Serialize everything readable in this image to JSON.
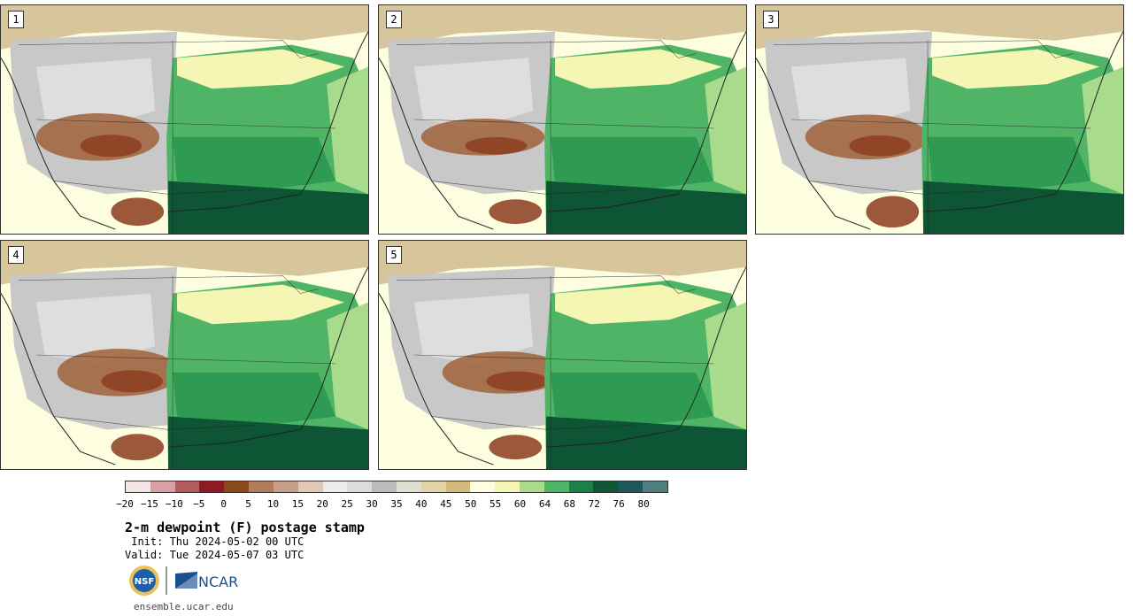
{
  "panels": [
    {
      "number": "1",
      "west_dry": 0.9,
      "south_dry": 0.8
    },
    {
      "number": "2",
      "west_dry": 0.7,
      "south_dry": 0.7
    },
    {
      "number": "3",
      "west_dry": 0.85,
      "south_dry": 0.9
    },
    {
      "number": "4",
      "west_dry": 0.9,
      "south_dry": 0.75
    },
    {
      "number": "5",
      "west_dry": 0.8,
      "south_dry": 0.7
    }
  ],
  "colorbar": {
    "colors": [
      "#f4e6e6",
      "#d9a0a3",
      "#b25c60",
      "#8e1a22",
      "#8a4a19",
      "#b07c5c",
      "#c8a088",
      "#e0c8b8",
      "#ececec",
      "#dcdcdc",
      "#bcbcbc",
      "#dfdfcf",
      "#e3d3a9",
      "#d4b97a",
      "#fdfde0",
      "#f6f6b4",
      "#a8dc8c",
      "#4fb465",
      "#18824a",
      "#0d5535",
      "#1e5758",
      "#4f7f7f"
    ],
    "tick_labels": [
      "−20",
      "−15",
      "−10",
      "−5",
      "0",
      "5",
      "10",
      "15",
      "20",
      "25",
      "30",
      "35",
      "40",
      "45",
      "50",
      "55",
      "60",
      "64",
      "68",
      "72",
      "76",
      "80"
    ]
  },
  "title": "2-m dewpoint (F) postage stamp",
  "init": " Init: Thu 2024-05-02 00 UTC",
  "valid": "Valid: Tue 2024-05-07 03 UTC",
  "logos": {
    "nsf": "NSF",
    "ncar": "NCAR"
  },
  "site": "ensemble.ucar.edu",
  "map_colors": {
    "ocean_north": "#fdfde0",
    "canada": "#d7c59c",
    "west_gray": "#c8c8c8",
    "west_light": "#dedede",
    "dry_brown": "#a0623a",
    "dry_dark": "#8a3b1c",
    "plains_light": "#f6f6b4",
    "east_green": "#4fb465",
    "east_mid": "#2e9a52",
    "gulf_dark": "#0d5535",
    "atlantic": "#a8dc8c",
    "border": "#222222"
  }
}
